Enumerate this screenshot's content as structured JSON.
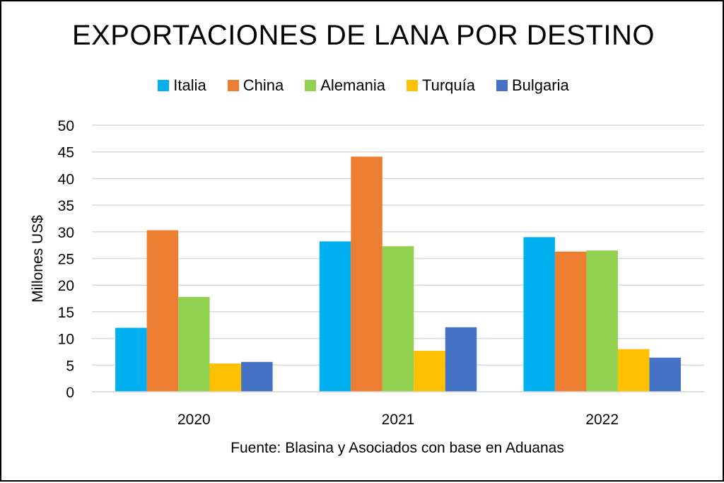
{
  "chart_data": {
    "type": "bar",
    "title": "EXPORTACIONES DE LANA POR DESTINO",
    "ylabel": "Millones US$",
    "xlabel": "",
    "categories": [
      "2020",
      "2021",
      "2022"
    ],
    "ylim": [
      0,
      50
    ],
    "yticks": [
      0,
      5,
      10,
      15,
      20,
      25,
      30,
      35,
      40,
      45,
      50
    ],
    "grid": true,
    "legend_position": "top",
    "series": [
      {
        "name": "Italia",
        "color": "#00B0F0",
        "values": [
          12,
          28.2,
          29
        ]
      },
      {
        "name": "China",
        "color": "#ED7D31",
        "values": [
          30.3,
          44.1,
          26.3
        ]
      },
      {
        "name": "Alemania",
        "color": "#92D050",
        "values": [
          17.8,
          27.3,
          26.5
        ]
      },
      {
        "name": "Turquía",
        "color": "#FFC000",
        "values": [
          5.3,
          7.7,
          8
        ]
      },
      {
        "name": "Bulgaria",
        "color": "#4472C4",
        "values": [
          5.6,
          12.1,
          6.4
        ]
      }
    ],
    "source": "Fuente: Blasina y Asociados con base en Aduanas"
  }
}
